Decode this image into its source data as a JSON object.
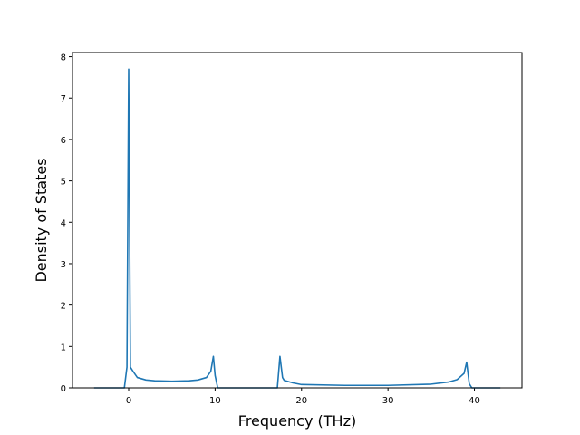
{
  "chart_data": {
    "type": "line",
    "title": "",
    "xlabel": "Frequency (THz)",
    "ylabel": "Density of States",
    "xlim": [
      -6.5,
      45.5
    ],
    "ylim": [
      0,
      8.1
    ],
    "xticks": [
      0,
      10,
      20,
      30,
      40
    ],
    "yticks": [
      0,
      1,
      2,
      3,
      4,
      5,
      6,
      7,
      8
    ],
    "grid": false,
    "legend": "none",
    "series": [
      {
        "color": "#1f77b4",
        "x": [
          -4.0,
          -0.5,
          -0.2,
          0.0,
          0.2,
          0.5,
          1.0,
          2.0,
          3.0,
          5.0,
          7.0,
          8.0,
          9.0,
          9.5,
          9.8,
          10.0,
          10.3,
          12.0,
          15.0,
          17.2,
          17.5,
          17.8,
          18.0,
          19.0,
          20.0,
          25.0,
          30.0,
          35.0,
          37.0,
          38.0,
          38.8,
          39.1,
          39.4,
          39.7,
          41.0,
          43.0
        ],
        "y": [
          0.0,
          0.0,
          0.5,
          7.7,
          0.5,
          0.4,
          0.25,
          0.19,
          0.17,
          0.16,
          0.17,
          0.19,
          0.25,
          0.4,
          0.76,
          0.3,
          0.0,
          0.0,
          0.0,
          0.0,
          0.76,
          0.25,
          0.18,
          0.12,
          0.08,
          0.06,
          0.06,
          0.09,
          0.14,
          0.2,
          0.35,
          0.62,
          0.1,
          0.0,
          0.0,
          0.0
        ]
      }
    ]
  }
}
